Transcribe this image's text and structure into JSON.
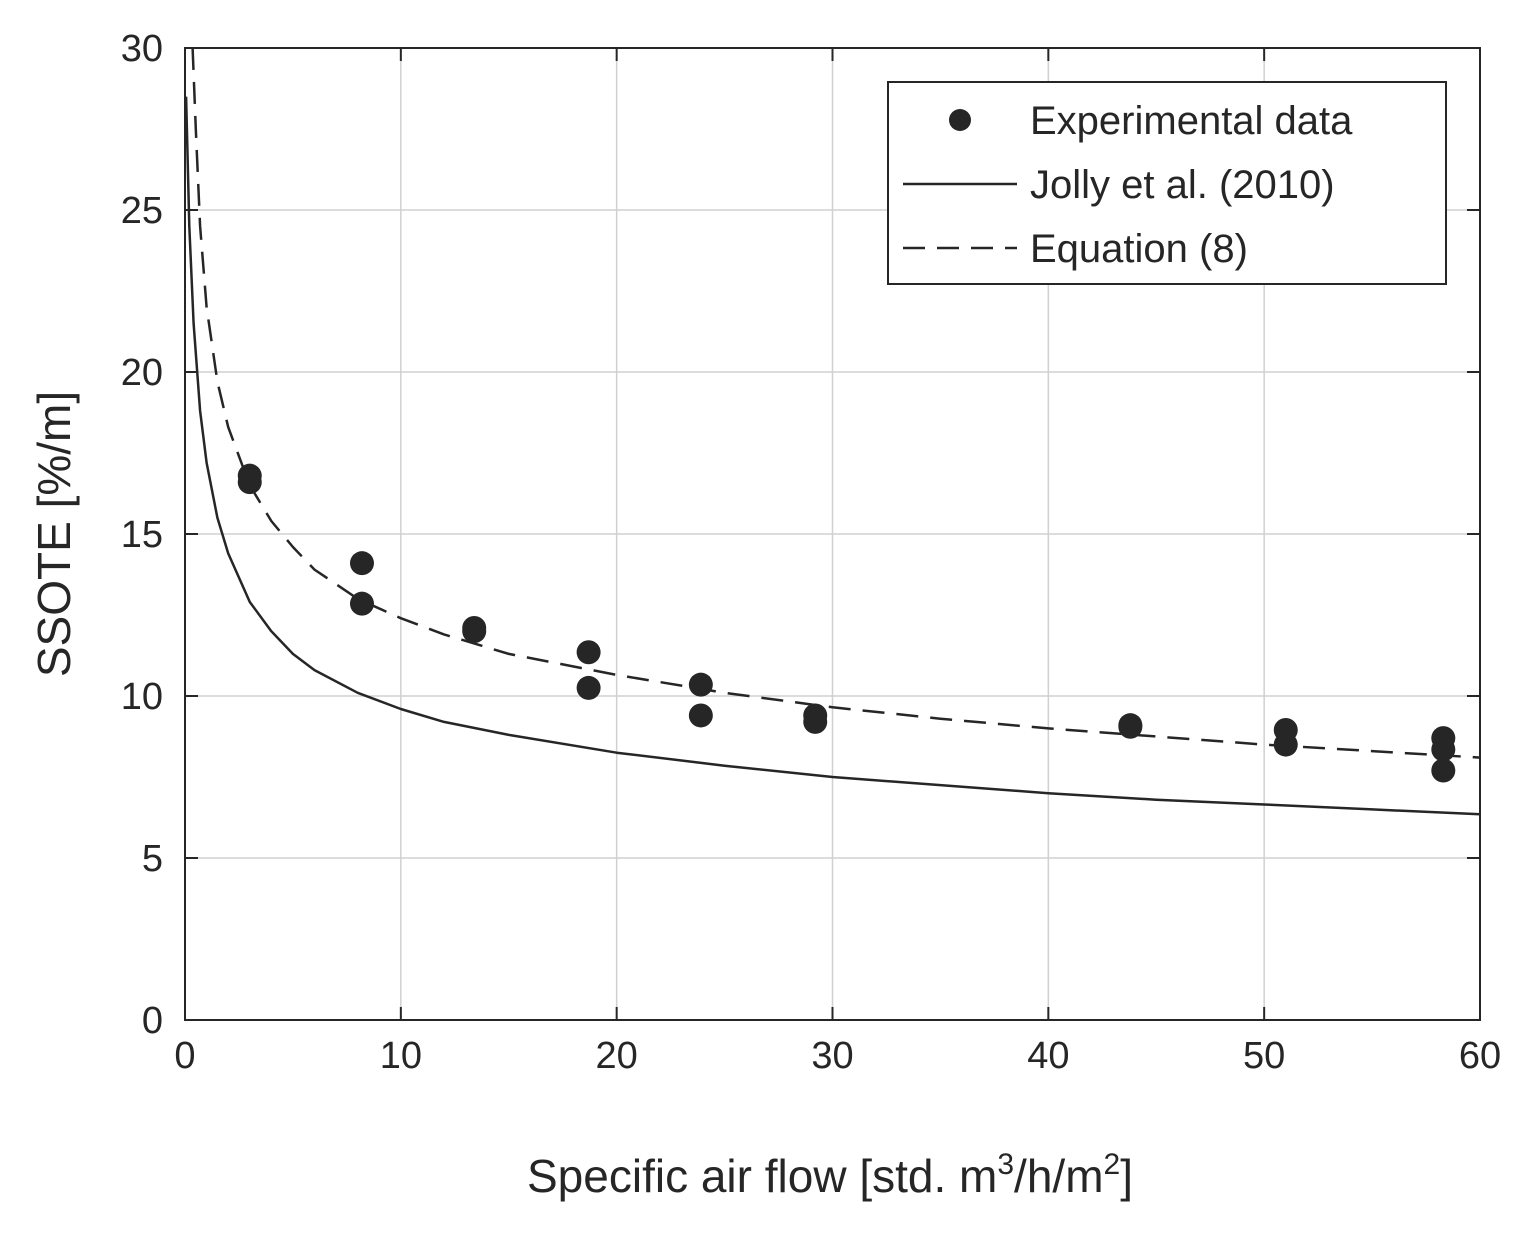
{
  "chart_data": {
    "type": "scatter",
    "title": "",
    "xlabel": {
      "main": "Specific air flow [std. m",
      "sup1": "3",
      "mid": "/h/m",
      "sup2": "2",
      "end": "]"
    },
    "ylabel": "SSOTE [%/m]",
    "xlim": [
      0,
      60
    ],
    "ylim": [
      0,
      30
    ],
    "xticks": [
      0,
      10,
      20,
      30,
      40,
      50,
      60
    ],
    "yticks": [
      0,
      5,
      10,
      15,
      20,
      25,
      30
    ],
    "grid": true,
    "legend_position": "top-right",
    "colors": {
      "marker": "#262626",
      "line": "#262626",
      "grid": "#d0d0d0",
      "axis": "#262626"
    },
    "series": [
      {
        "name": "Experimental data",
        "style": "markers",
        "points": [
          [
            3.0,
            16.8
          ],
          [
            3.0,
            16.6
          ],
          [
            8.2,
            14.1
          ],
          [
            8.2,
            12.85
          ],
          [
            13.4,
            12.0
          ],
          [
            13.4,
            12.1
          ],
          [
            18.7,
            11.35
          ],
          [
            18.7,
            10.25
          ],
          [
            23.9,
            10.35
          ],
          [
            23.9,
            9.4
          ],
          [
            29.2,
            9.4
          ],
          [
            29.2,
            9.2
          ],
          [
            43.8,
            9.05
          ],
          [
            43.8,
            9.1
          ],
          [
            51.0,
            8.95
          ],
          [
            51.0,
            8.5
          ],
          [
            58.3,
            8.7
          ],
          [
            58.3,
            8.35
          ],
          [
            58.3,
            7.7
          ]
        ]
      },
      {
        "name": "Jolly et al. (2010)",
        "style": "solid",
        "curve": {
          "x": [
            0.05,
            0.2,
            0.4,
            0.7,
            1.0,
            1.5,
            2.0,
            3.0,
            4.0,
            5.0,
            6.0,
            8.0,
            10.0,
            12.0,
            15.0,
            20.0,
            25.0,
            30.0,
            35.0,
            40.0,
            45.0,
            50.0,
            55.0,
            60.0
          ],
          "y": [
            28.5,
            24.5,
            21.5,
            18.8,
            17.2,
            15.5,
            14.4,
            12.9,
            12.0,
            11.3,
            10.8,
            10.1,
            9.6,
            9.2,
            8.8,
            8.25,
            7.85,
            7.5,
            7.25,
            7.0,
            6.8,
            6.65,
            6.5,
            6.35
          ]
        }
      },
      {
        "name": "Equation (8)",
        "style": "dashed",
        "curve": {
          "x": [
            0.35,
            0.5,
            0.7,
            1.0,
            1.5,
            2.0,
            3.0,
            4.0,
            5.0,
            6.0,
            8.0,
            10.0,
            12.0,
            15.0,
            20.0,
            25.0,
            30.0,
            35.0,
            40.0,
            45.0,
            50.0,
            55.0,
            60.0
          ],
          "y": [
            30.0,
            27.5,
            24.5,
            22.0,
            19.7,
            18.3,
            16.5,
            15.4,
            14.6,
            13.9,
            13.0,
            12.4,
            11.9,
            11.3,
            10.65,
            10.1,
            9.65,
            9.3,
            9.0,
            8.75,
            8.5,
            8.3,
            8.1
          ]
        }
      }
    ]
  }
}
